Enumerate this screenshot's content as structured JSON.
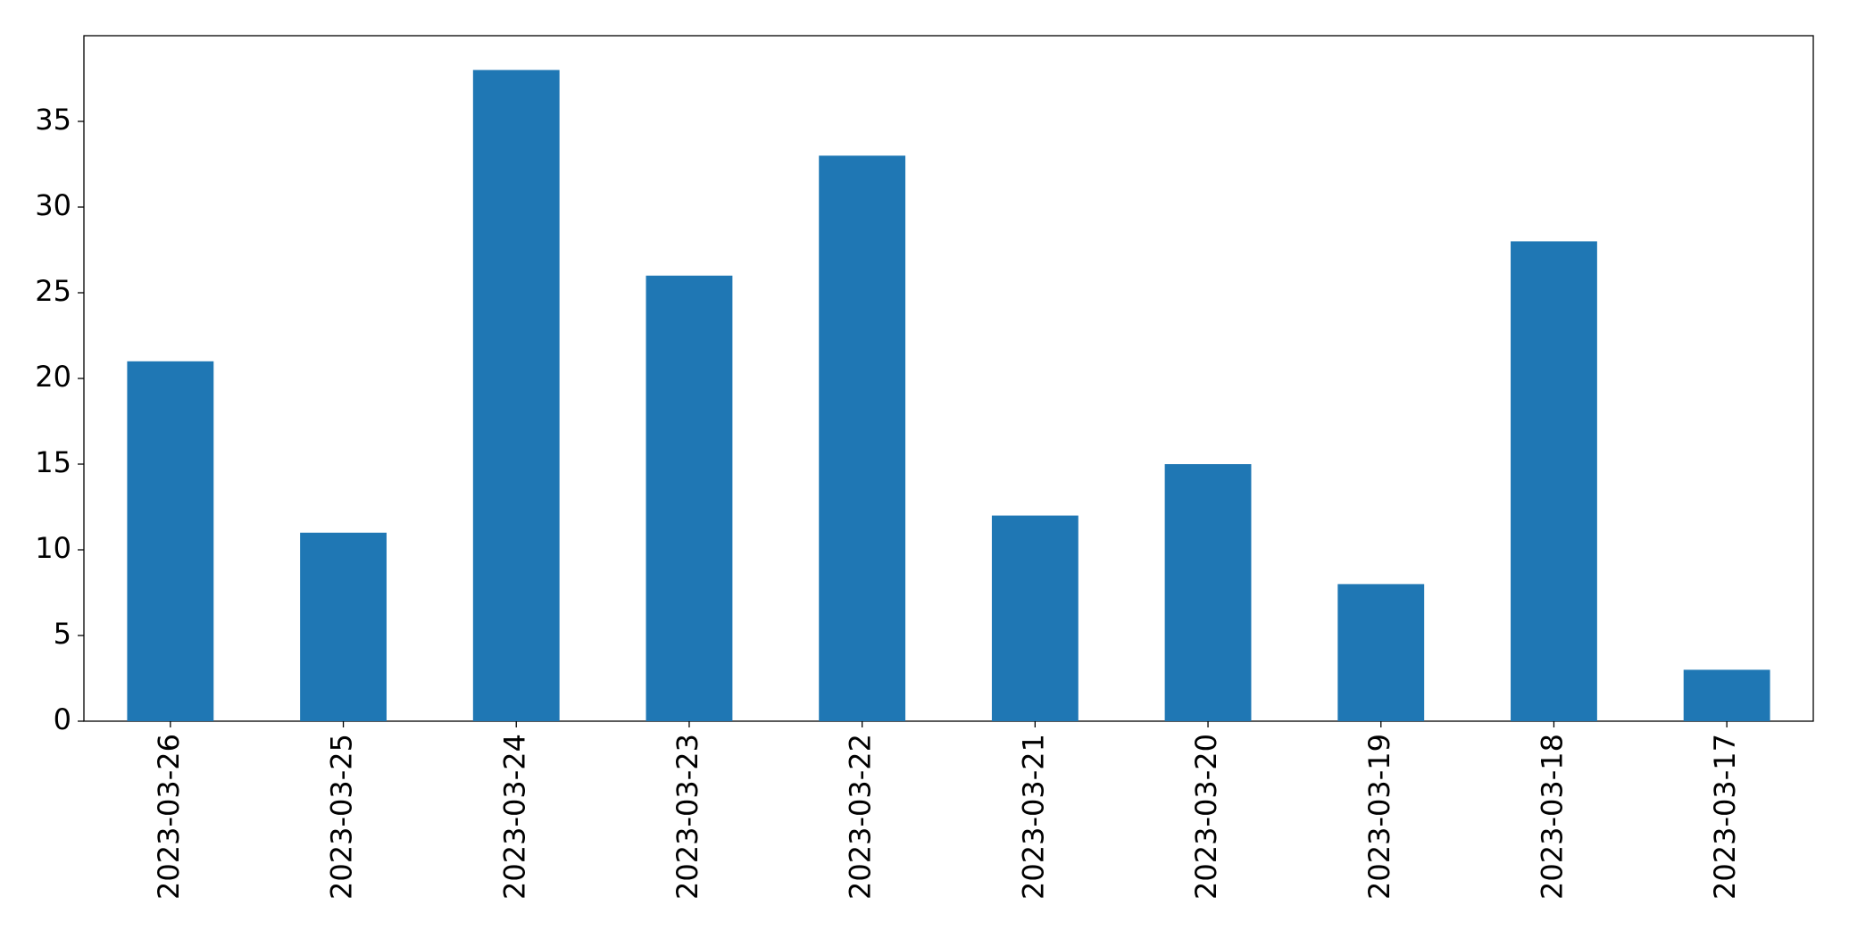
{
  "chart_data": {
    "type": "bar",
    "categories": [
      "2023-03-26",
      "2023-03-25",
      "2023-03-24",
      "2023-03-23",
      "2023-03-22",
      "2023-03-21",
      "2023-03-20",
      "2023-03-19",
      "2023-03-18",
      "2023-03-17"
    ],
    "values": [
      21,
      11,
      38,
      26,
      33,
      12,
      15,
      8,
      28,
      3
    ],
    "color": "#1f77b4",
    "ylim": [
      0,
      40
    ],
    "yticks": [
      0,
      5,
      10,
      15,
      20,
      25,
      30,
      35
    ],
    "grid": false
  }
}
